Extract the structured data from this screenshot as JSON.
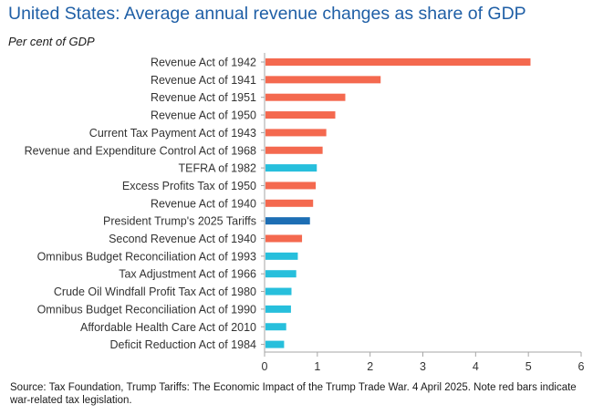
{
  "chart_data": {
    "type": "bar",
    "orientation": "horizontal",
    "title": "United States: Average annual revenue changes as share of GDP",
    "ylabel": "Per cent of GDP",
    "categories": [
      "Revenue Act of 1942",
      "Revenue Act of 1941",
      "Revenue Act of 1951",
      "Revenue Act of 1950",
      "Current Tax Payment Act of 1943",
      "Revenue and Expenditure Control Act of 1968",
      "TEFRA of 1982",
      "Excess Profits Tax of 1950",
      "Revenue Act of 1940",
      "President Trump's 2025 Tariffs",
      "Second Revenue Act of 1940",
      "Omnibus Budget Reconciliation Act of 1993",
      "Tax Adjustment Act of 1966",
      "Crude Oil Windfall Profit Tax Act of 1980",
      "Omnibus Budget Reconciliation Act of 1990",
      "Affordable Health Care Act of 2010",
      "Deficit Reduction Act of 1984"
    ],
    "values": [
      5.04,
      2.2,
      1.53,
      1.34,
      1.17,
      1.1,
      0.99,
      0.97,
      0.92,
      0.86,
      0.71,
      0.63,
      0.6,
      0.51,
      0.5,
      0.41,
      0.37
    ],
    "bar_types": [
      "war",
      "war",
      "war",
      "war",
      "war",
      "war",
      "other",
      "war",
      "war",
      "tariff",
      "war",
      "other",
      "other",
      "other",
      "other",
      "other",
      "other"
    ],
    "xlim": [
      0,
      6
    ],
    "xticks": [
      0,
      1,
      2,
      3,
      4,
      5,
      6
    ],
    "colors": {
      "war": "#f4694f",
      "other": "#27bfdc",
      "tariff": "#1d6eb4",
      "title": "#1f5fa6",
      "axis": "#a6a6a6"
    },
    "source": "Source: Tax Foundation, Trump Tariffs: The Economic Impact of the Trump Trade War. 4 April 2025. Note red bars indicate war-related tax legislation."
  }
}
